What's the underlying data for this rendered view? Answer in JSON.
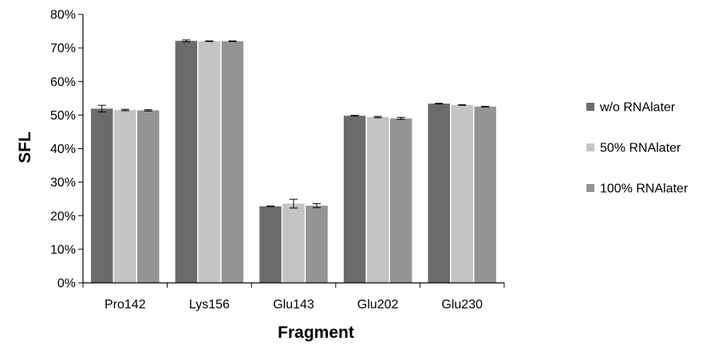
{
  "chart_data": {
    "type": "bar",
    "title": "",
    "xlabel": "Fragment",
    "ylabel": "SFL",
    "ylim": [
      0,
      80
    ],
    "y_tick_labels": [
      "0%",
      "10%",
      "20%",
      "30%",
      "40%",
      "50%",
      "60%",
      "70%",
      "80%"
    ],
    "categories": [
      "Pro142",
      "Lys156",
      "Glu143",
      "Glu202",
      "Glu230"
    ],
    "series": [
      {
        "name": "w/o RNAlater",
        "color": "#6b6b6b",
        "values": [
          51.9,
          72.1,
          22.8,
          49.8,
          53.4
        ],
        "errors": [
          1.0,
          0.3,
          0.1,
          0.1,
          0.1
        ]
      },
      {
        "name": "50% RNAlater",
        "color": "#c4c4c4",
        "values": [
          51.5,
          72.0,
          23.6,
          49.4,
          53.0
        ],
        "errors": [
          0.2,
          0.1,
          1.3,
          0.2,
          0.1
        ]
      },
      {
        "name": "100% RNAlater",
        "color": "#949494",
        "values": [
          51.4,
          72.0,
          23.0,
          49.0,
          52.5
        ],
        "errors": [
          0.2,
          0.1,
          0.6,
          0.3,
          0.1
        ]
      }
    ],
    "grid": false,
    "legend_position": "right"
  }
}
